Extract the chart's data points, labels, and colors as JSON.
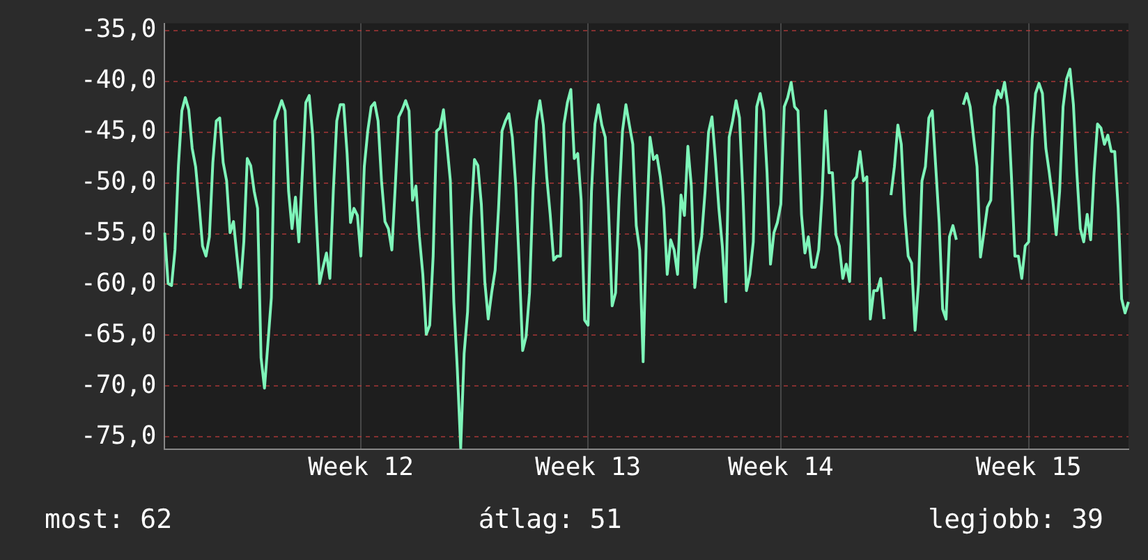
{
  "chart_data": {
    "type": "line",
    "marker": "none",
    "line_style": "solid",
    "grid": true,
    "legend": false,
    "ylim": [
      -76.2,
      -34.3
    ],
    "yticks": [
      {
        "value": -35,
        "label": "-35,0"
      },
      {
        "value": -40,
        "label": "-40,0"
      },
      {
        "value": -45,
        "label": "-45,0"
      },
      {
        "value": -50,
        "label": "-50,0"
      },
      {
        "value": -55,
        "label": "-55,0"
      },
      {
        "value": -60,
        "label": "-60,0"
      },
      {
        "value": -65,
        "label": "-65,0"
      },
      {
        "value": -70,
        "label": "-70,0"
      },
      {
        "value": -75,
        "label": "-75,0"
      }
    ],
    "annotations": [
      "most: 62",
      "átlag: 51",
      "legjobb: 39"
    ],
    "categories": [
      null,
      null,
      null,
      null,
      null,
      null,
      null,
      null,
      null,
      null,
      null,
      null,
      null,
      null,
      null,
      null,
      null,
      null,
      null,
      null,
      null,
      null,
      null,
      null,
      null,
      null,
      null,
      null,
      null,
      null,
      null,
      null,
      null,
      null,
      null,
      null,
      null,
      null,
      null,
      null,
      null,
      null,
      null,
      null,
      null,
      null,
      null,
      null,
      null,
      null,
      null,
      null,
      null,
      null,
      null,
      null,
      null,
      "Week 12",
      null,
      null,
      null,
      null,
      null,
      null,
      null,
      null,
      null,
      null,
      null,
      null,
      null,
      null,
      null,
      null,
      null,
      null,
      null,
      null,
      null,
      null,
      null,
      null,
      null,
      null,
      null,
      null,
      null,
      null,
      null,
      null,
      null,
      null,
      null,
      null,
      null,
      null,
      null,
      null,
      null,
      null,
      null,
      null,
      null,
      null,
      null,
      null,
      null,
      null,
      null,
      null,
      null,
      null,
      null,
      null,
      null,
      null,
      null,
      null,
      null,
      null,
      null,
      null,
      null,
      "Week 13",
      null,
      null,
      null,
      null,
      null,
      null,
      null,
      null,
      null,
      null,
      null,
      null,
      null,
      null,
      null,
      null,
      null,
      null,
      null,
      null,
      null,
      null,
      null,
      null,
      null,
      null,
      null,
      null,
      null,
      null,
      null,
      null,
      null,
      null,
      null,
      null,
      null,
      null,
      null,
      null,
      null,
      null,
      null,
      null,
      null,
      null,
      null,
      null,
      null,
      null,
      null,
      null,
      null,
      null,
      null,
      "Week 14",
      null,
      null,
      null,
      null,
      null,
      null,
      null,
      null,
      null,
      null,
      null,
      null,
      null,
      null,
      null,
      null,
      null,
      null,
      null,
      null,
      null,
      null,
      null,
      null,
      null,
      null,
      null,
      null,
      null,
      null,
      null,
      null,
      null,
      null,
      null,
      null,
      null,
      null,
      null,
      null,
      null,
      null,
      null,
      null,
      null,
      null,
      null,
      null,
      null,
      null,
      null,
      null,
      null,
      null,
      null,
      null,
      null,
      null,
      null,
      null,
      null,
      null,
      null,
      null,
      null,
      null,
      null,
      null,
      null,
      null,
      null,
      "Week 15",
      null,
      null,
      null,
      null,
      null,
      null,
      null,
      null,
      null,
      null,
      null,
      null,
      null,
      null,
      null,
      null,
      null,
      null,
      null,
      null,
      null,
      null,
      null,
      null,
      null,
      null,
      null,
      null,
      null
    ],
    "series": [
      {
        "color": "#7ef5b9",
        "values": [
          -54.9,
          -59.9,
          -60.1,
          -56.6,
          -48.3,
          -42.9,
          -41.6,
          -42.8,
          -46.6,
          -48.4,
          -52.1,
          -56.2,
          -57.2,
          -55.3,
          -48.0,
          -43.9,
          -43.6,
          -48.0,
          -49.8,
          -54.9,
          -53.8,
          -57.2,
          -60.3,
          -55.8,
          -47.6,
          -48.3,
          -50.8,
          -52.5,
          -67.2,
          -70.2,
          -65.8,
          -61.3,
          -43.9,
          -42.9,
          -41.9,
          -42.9,
          -50.8,
          -54.5,
          -51.4,
          -55.8,
          -49.0,
          -42.1,
          -41.4,
          -45.3,
          -53.1,
          -59.9,
          -58.3,
          -56.9,
          -59.4,
          -50.8,
          -43.9,
          -42.3,
          -42.3,
          -47.1,
          -53.9,
          -52.5,
          -53.2,
          -57.2,
          -48.4,
          -44.9,
          -42.5,
          -42.1,
          -43.9,
          -49.8,
          -53.8,
          -54.5,
          -56.6,
          -50.3,
          -43.5,
          -42.8,
          -41.9,
          -42.9,
          -51.7,
          -50.3,
          -55.3,
          -59.0,
          -64.9,
          -64.0,
          -57.2,
          -44.9,
          -44.6,
          -42.8,
          -46.2,
          -49.8,
          -61.7,
          -68.2,
          -76.1,
          -66.8,
          -62.7,
          -53.5,
          -47.7,
          -48.3,
          -52.1,
          -59.7,
          -63.4,
          -60.8,
          -58.6,
          -52.5,
          -44.9,
          -43.9,
          -43.2,
          -45.5,
          -50.3,
          -58.0,
          -66.5,
          -65.1,
          -60.8,
          -50.8,
          -43.9,
          -41.9,
          -44.3,
          -49.4,
          -53.1,
          -57.6,
          -57.2,
          -57.2,
          -44.2,
          -42.1,
          -40.8,
          -47.6,
          -47.1,
          -51.7,
          -63.5,
          -64.0,
          -50.8,
          -44.2,
          -42.3,
          -44.3,
          -45.5,
          -53.1,
          -62.1,
          -60.8,
          -51.7,
          -44.9,
          -42.3,
          -44.3,
          -46.2,
          -54.2,
          -56.6,
          -67.6,
          -54.5,
          -45.5,
          -47.7,
          -47.3,
          -49.4,
          -52.5,
          -59.0,
          -55.6,
          -56.6,
          -59.0,
          -51.2,
          -53.2,
          -46.4,
          -50.3,
          -60.3,
          -57.2,
          -55.3,
          -50.8,
          -45.0,
          -43.5,
          -47.7,
          -52.5,
          -56.2,
          -61.7,
          -45.5,
          -43.9,
          -41.9,
          -43.6,
          -51.2,
          -60.6,
          -59.0,
          -55.8,
          -42.5,
          -41.2,
          -42.9,
          -49.0,
          -58.0,
          -54.9,
          -53.9,
          -52.1,
          -42.5,
          -41.6,
          -40.1,
          -42.5,
          -42.9,
          -53.1,
          -56.9,
          -55.3,
          -58.3,
          -58.3,
          -56.6,
          -51.2,
          -42.9,
          -49.0,
          -49.0,
          -55.1,
          -56.2,
          -59.4,
          -58.0,
          -59.7,
          -49.8,
          -49.4,
          -46.9,
          -49.8,
          -49.4,
          -63.4,
          -60.6,
          -60.6,
          -59.4,
          -63.4,
          null,
          -51.2,
          -48.4,
          -44.3,
          -46.2,
          -53.1,
          -57.2,
          -57.9,
          -64.5,
          -59.9,
          -49.8,
          -48.4,
          -43.6,
          -42.9,
          -48.4,
          -53.9,
          -62.4,
          -63.4,
          -55.3,
          -54.2,
          -55.6,
          null,
          -42.3,
          -41.2,
          -42.5,
          -45.5,
          -48.4,
          -57.3,
          -54.9,
          -52.4,
          -51.7,
          -42.5,
          -40.9,
          -41.6,
          -40.1,
          -42.5,
          -49.4,
          -57.2,
          -57.2,
          -59.4,
          -56.2,
          -55.8,
          -45.7,
          -41.2,
          -40.2,
          -41.2,
          -46.6,
          -49.0,
          -51.7,
          -55.1,
          -50.8,
          -42.5,
          -39.8,
          -38.8,
          -42.3,
          -49.0,
          -54.5,
          -55.8,
          -53.1,
          -55.6,
          -49.0,
          -44.2,
          -44.6,
          -46.2,
          -45.3,
          -46.9,
          -46.9,
          -52.5,
          -61.4,
          -62.8,
          -61.7
        ]
      }
    ]
  }
}
